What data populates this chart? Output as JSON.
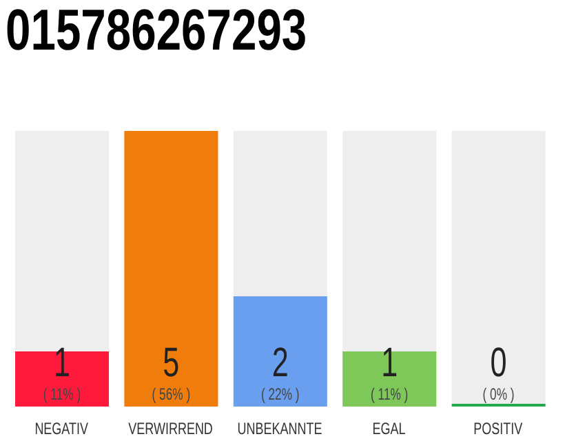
{
  "chart_data": {
    "type": "bar",
    "title": "015786267293",
    "categories": [
      "NEGATIV",
      "VERWIRREND",
      "UNBEKANNTE",
      "EGAL",
      "POSITIV"
    ],
    "values": [
      1,
      5,
      2,
      1,
      0
    ],
    "colors": [
      "#ff1a3c",
      "#f07c0c",
      "#6a9fef",
      "#7ec85a",
      "#22a94f"
    ],
    "value_labels": [
      "1\n( 11% )",
      "5\n( 56% )",
      "2\n( 22% )",
      "1\n( 11% )",
      "0\n( 0% )"
    ],
    "grid": false,
    "legend": false
  }
}
